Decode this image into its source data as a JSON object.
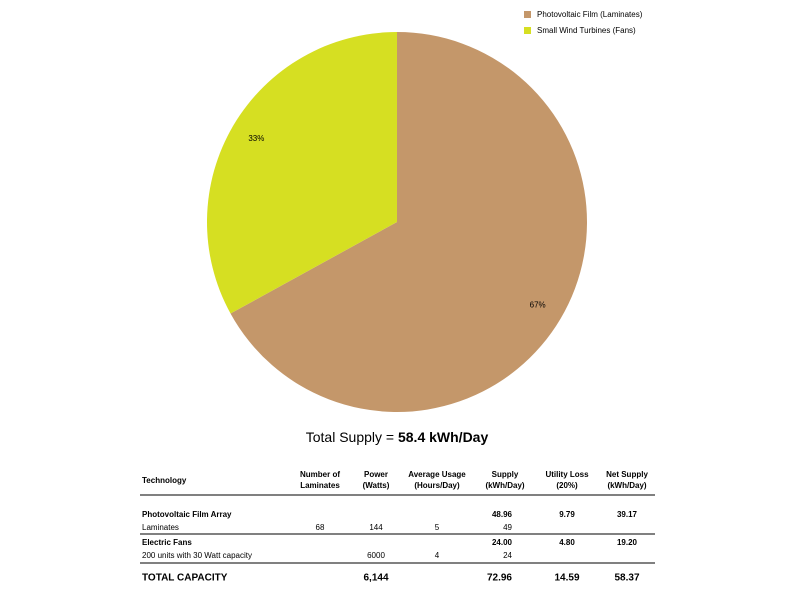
{
  "chart_data": {
    "type": "pie",
    "categories": [
      "Photovoltaic Film (Laminates)",
      "Small Wind Turbines (Fans)"
    ],
    "values": [
      67,
      33
    ],
    "value_labels": [
      "67%",
      "33%"
    ],
    "colors": [
      "#c4976a",
      "#d6df22"
    ],
    "legend": "top-right"
  },
  "summary": {
    "label": "Total Supply =",
    "value": "58.4 kWh/Day"
  },
  "table": {
    "columns": [
      [
        "Technology"
      ],
      [
        "Number of",
        "Laminates"
      ],
      [
        "Power",
        "(Watts)"
      ],
      [
        "Average Usage",
        "(Hours/Day)"
      ],
      [
        "Supply",
        "(kWh/Day)"
      ],
      [
        "Utility Loss",
        "(20%)"
      ],
      [
        "Net Supply",
        "(kWh/Day)"
      ]
    ],
    "rows": [
      [
        "Photovoltaic Film Array",
        null,
        null,
        null,
        "48.96",
        "9.79",
        "39.17"
      ],
      [
        "Laminates",
        "68",
        "144",
        "5",
        "49",
        null,
        null
      ],
      [
        "Electric Fans",
        null,
        null,
        null,
        "24.00",
        "4.80",
        "19.20"
      ],
      [
        "200 units with 30 Watt capacity",
        null,
        "6000",
        "4",
        "24",
        null,
        null
      ],
      [
        "TOTAL CAPACITY",
        null,
        "6,144",
        null,
        "72.96",
        "14.59",
        "58.37"
      ]
    ]
  }
}
